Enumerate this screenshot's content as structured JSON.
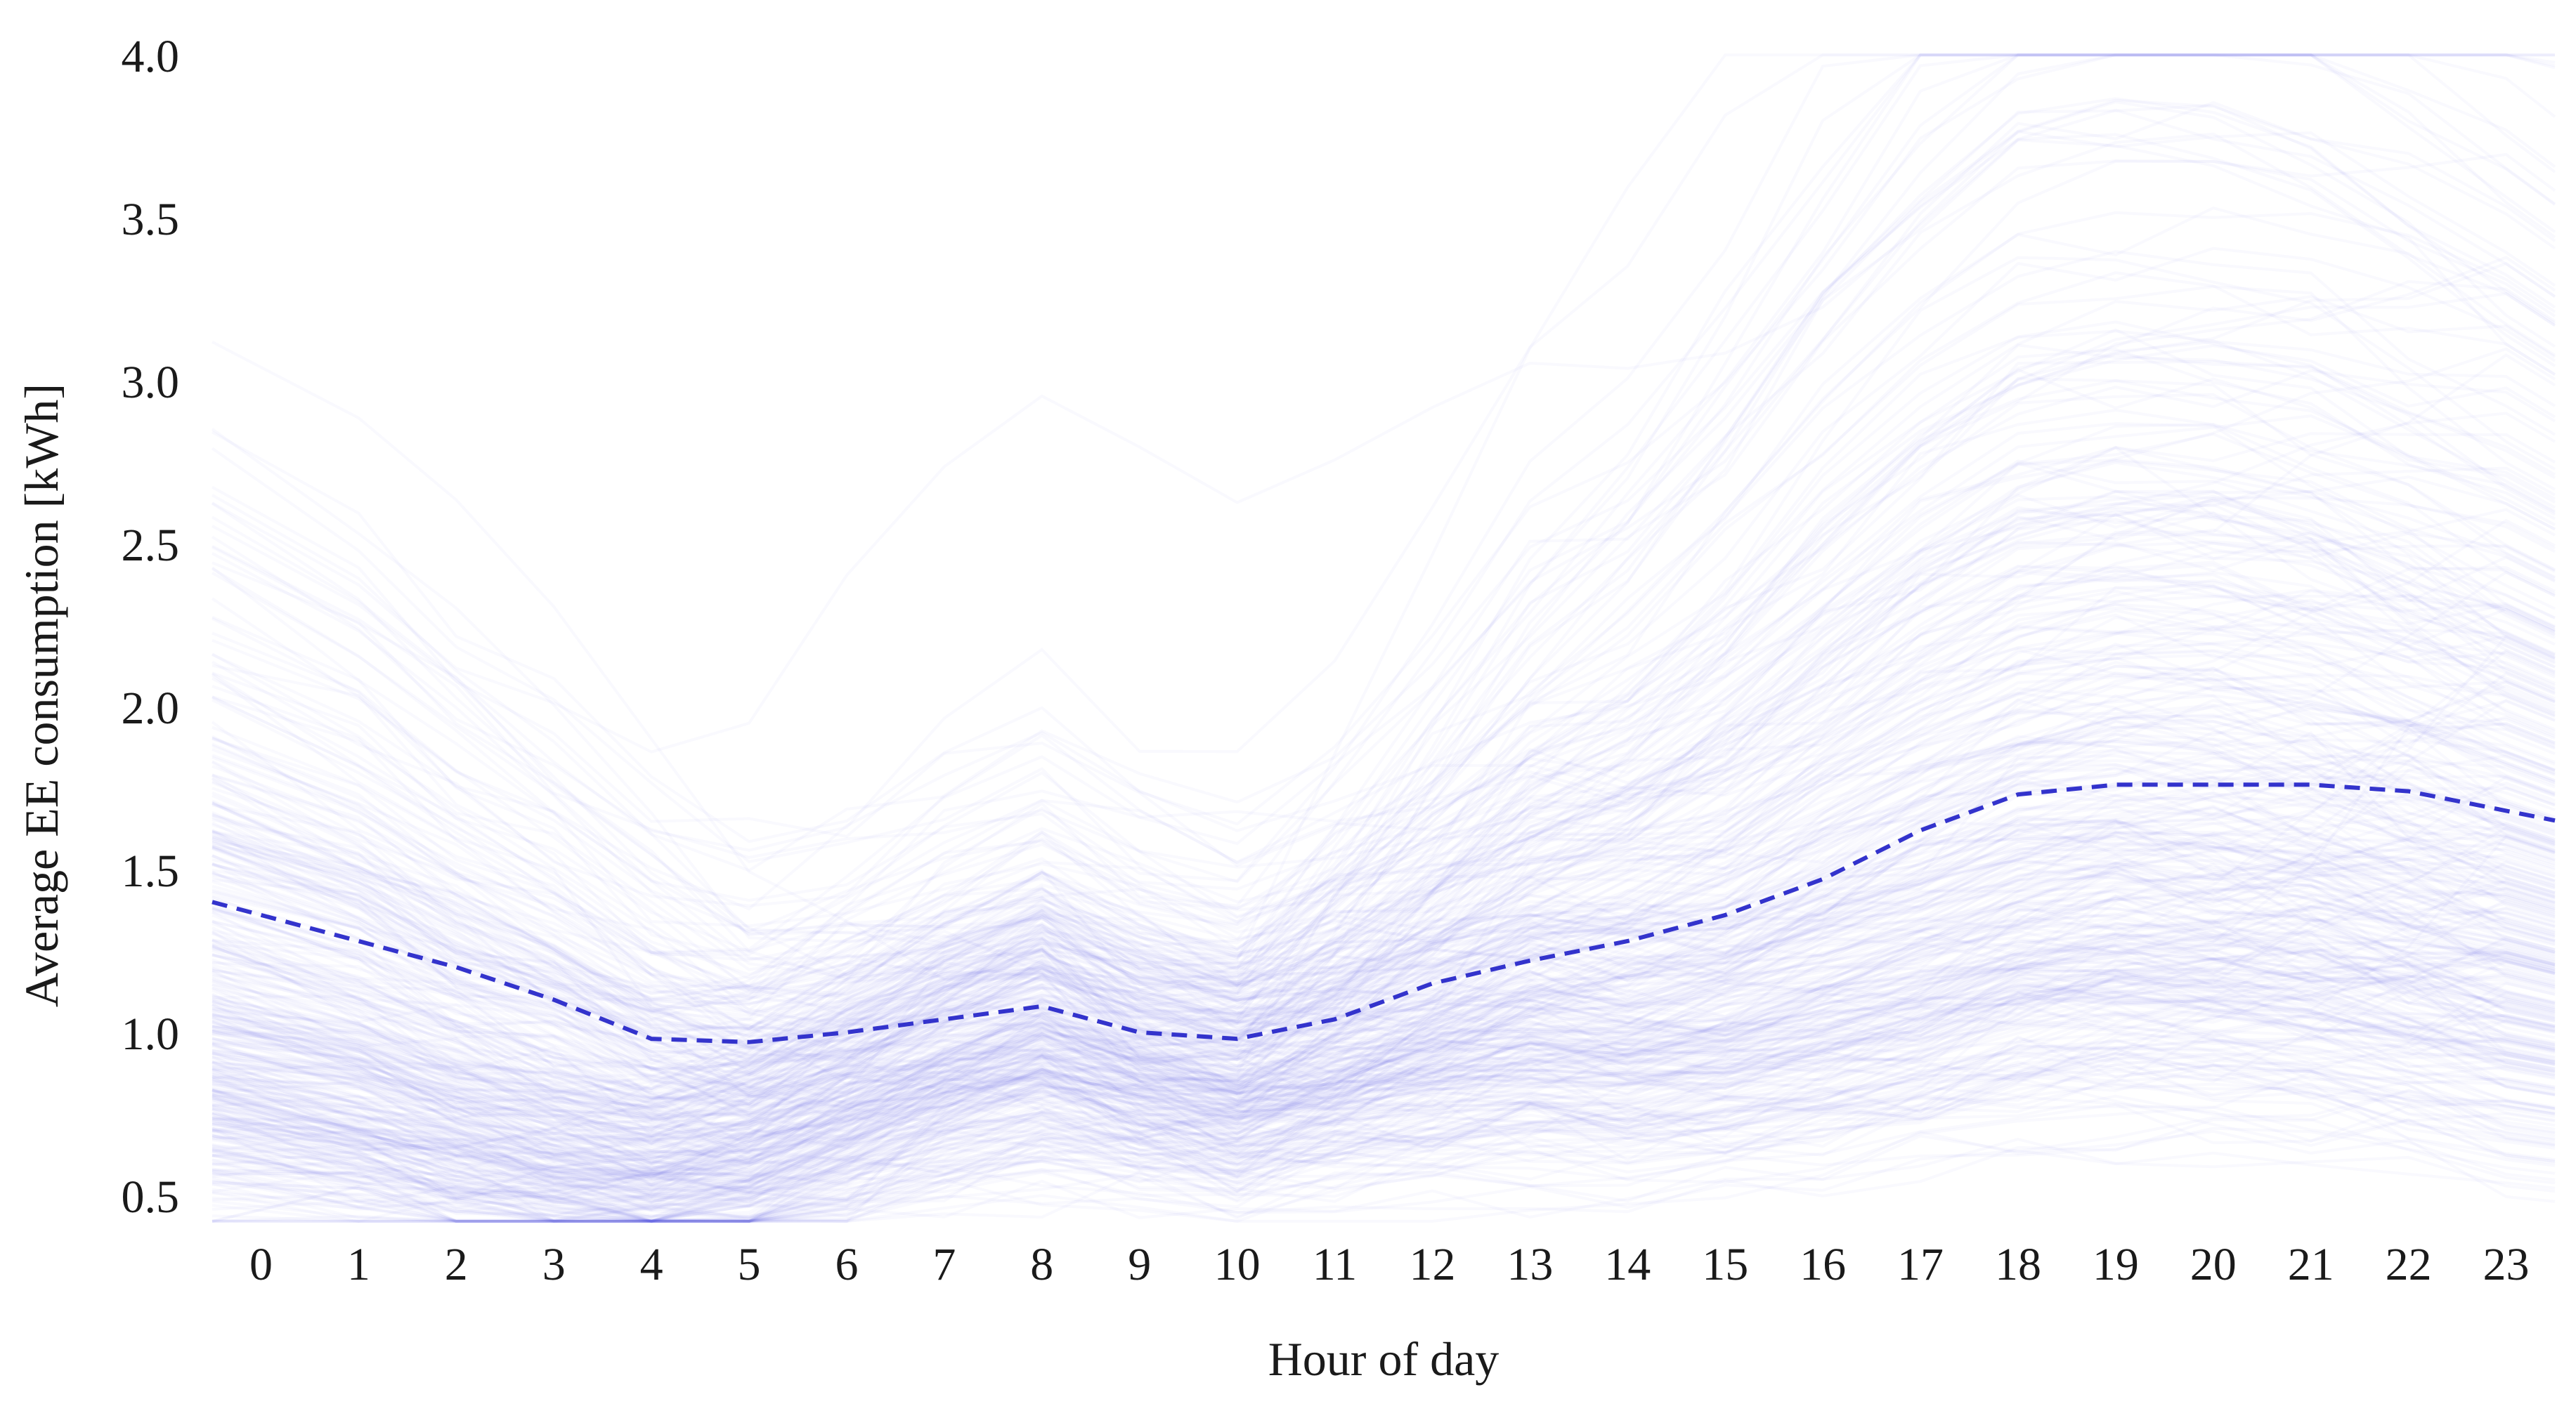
{
  "chart_data": {
    "type": "line",
    "xlabel": "Hour of day",
    "ylabel": "Average  EE consumption [kWh]",
    "xlim": [
      -0.5,
      23.5
    ],
    "ylim": [
      0.45,
      4.05
    ],
    "grid": false,
    "x_ticks": [
      "0",
      "1",
      "2",
      "3",
      "4",
      "5",
      "6",
      "7",
      "8",
      "9",
      "10",
      "11",
      "12",
      "13",
      "14",
      "15",
      "16",
      "17",
      "18",
      "19",
      "20",
      "21",
      "22",
      "23"
    ],
    "y_ticks": [
      "0.5",
      "1.0",
      "1.5",
      "2.0",
      "2.5",
      "3.0",
      "3.5",
      "4.0"
    ],
    "x": [
      0,
      1,
      2,
      3,
      4,
      5,
      6,
      7,
      8,
      9,
      10,
      11,
      12,
      13,
      14,
      15,
      16,
      17,
      18,
      19,
      20,
      21,
      22,
      23
    ],
    "series": [
      {
        "values": [
          1.4,
          1.28,
          1.2,
          1.1,
          0.98,
          0.97,
          1.0,
          1.04,
          1.08,
          1.0,
          0.98,
          1.04,
          1.15,
          1.22,
          1.28,
          1.36,
          1.47,
          1.62,
          1.73,
          1.76,
          1.76,
          1.76,
          1.74,
          1.65
        ],
        "style": "dashed",
        "color": "#3333cc"
      }
    ],
    "colors": {
      "individual_lines": "#5b5bf0",
      "mean_line": "#3333cc"
    }
  }
}
